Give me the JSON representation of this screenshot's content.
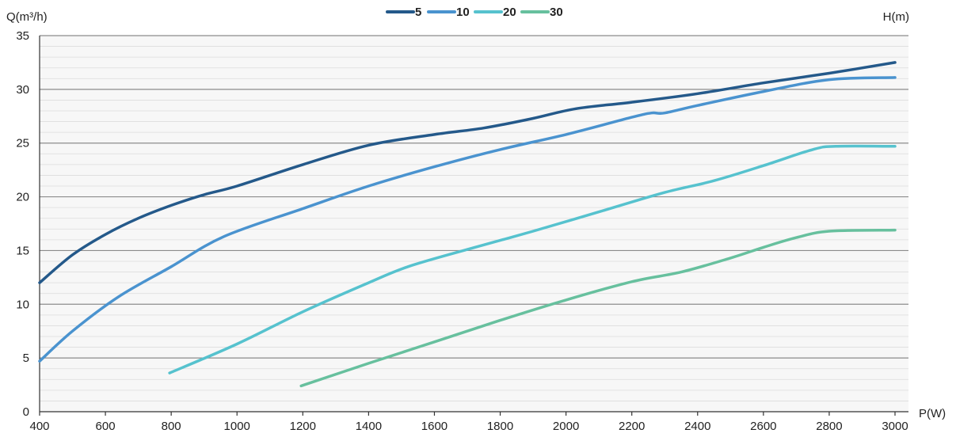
{
  "chart_data": {
    "type": "line",
    "ylabel": "Q(m³/h)",
    "y2label": "H(m)",
    "xlabel": "P(W)",
    "xlim": [
      400,
      3000
    ],
    "ylim": [
      0,
      35
    ],
    "xticks": [
      400,
      600,
      800,
      1000,
      1200,
      1400,
      1600,
      1800,
      2000,
      2200,
      2400,
      2600,
      2800,
      3000
    ],
    "yticks": [
      0,
      5,
      10,
      15,
      20,
      25,
      30,
      35
    ],
    "grid": true,
    "legend_position": "top-center",
    "series": [
      {
        "name": "5",
        "color": "#24598a",
        "points": [
          [
            400,
            12.0
          ],
          [
            500,
            14.6
          ],
          [
            600,
            16.5
          ],
          [
            700,
            18.0
          ],
          [
            800,
            19.2
          ],
          [
            900,
            20.2
          ],
          [
            1000,
            21.0
          ],
          [
            1200,
            23.0
          ],
          [
            1400,
            24.8
          ],
          [
            1600,
            25.8
          ],
          [
            1750,
            26.4
          ],
          [
            1900,
            27.3
          ],
          [
            2030,
            28.2
          ],
          [
            2200,
            28.8
          ],
          [
            2400,
            29.6
          ],
          [
            2600,
            30.6
          ],
          [
            2800,
            31.5
          ],
          [
            3000,
            32.5
          ]
        ]
      },
      {
        "name": "10",
        "color": "#4a93cf",
        "points": [
          [
            400,
            4.7
          ],
          [
            500,
            7.5
          ],
          [
            640,
            10.7
          ],
          [
            800,
            13.5
          ],
          [
            960,
            16.3
          ],
          [
            1200,
            18.9
          ],
          [
            1400,
            21.0
          ],
          [
            1600,
            22.8
          ],
          [
            1800,
            24.4
          ],
          [
            2000,
            25.8
          ],
          [
            2200,
            27.4
          ],
          [
            2260,
            27.8
          ],
          [
            2300,
            27.8
          ],
          [
            2400,
            28.5
          ],
          [
            2600,
            29.8
          ],
          [
            2800,
            30.9
          ],
          [
            3000,
            31.1
          ]
        ]
      },
      {
        "name": "20",
        "color": "#56c2ce",
        "points": [
          [
            795,
            3.6
          ],
          [
            1000,
            6.3
          ],
          [
            1200,
            9.3
          ],
          [
            1400,
            12.0
          ],
          [
            1520,
            13.5
          ],
          [
            1700,
            15.1
          ],
          [
            1900,
            16.8
          ],
          [
            2100,
            18.6
          ],
          [
            2300,
            20.4
          ],
          [
            2450,
            21.5
          ],
          [
            2600,
            22.9
          ],
          [
            2750,
            24.4
          ],
          [
            2820,
            24.7
          ],
          [
            3000,
            24.7
          ]
        ]
      },
      {
        "name": "30",
        "color": "#67c09e",
        "points": [
          [
            1195,
            2.4
          ],
          [
            1400,
            4.5
          ],
          [
            1600,
            6.5
          ],
          [
            1800,
            8.5
          ],
          [
            2000,
            10.4
          ],
          [
            2200,
            12.1
          ],
          [
            2350,
            13.0
          ],
          [
            2500,
            14.3
          ],
          [
            2600,
            15.3
          ],
          [
            2700,
            16.2
          ],
          [
            2800,
            16.8
          ],
          [
            3000,
            16.9
          ]
        ]
      }
    ]
  }
}
